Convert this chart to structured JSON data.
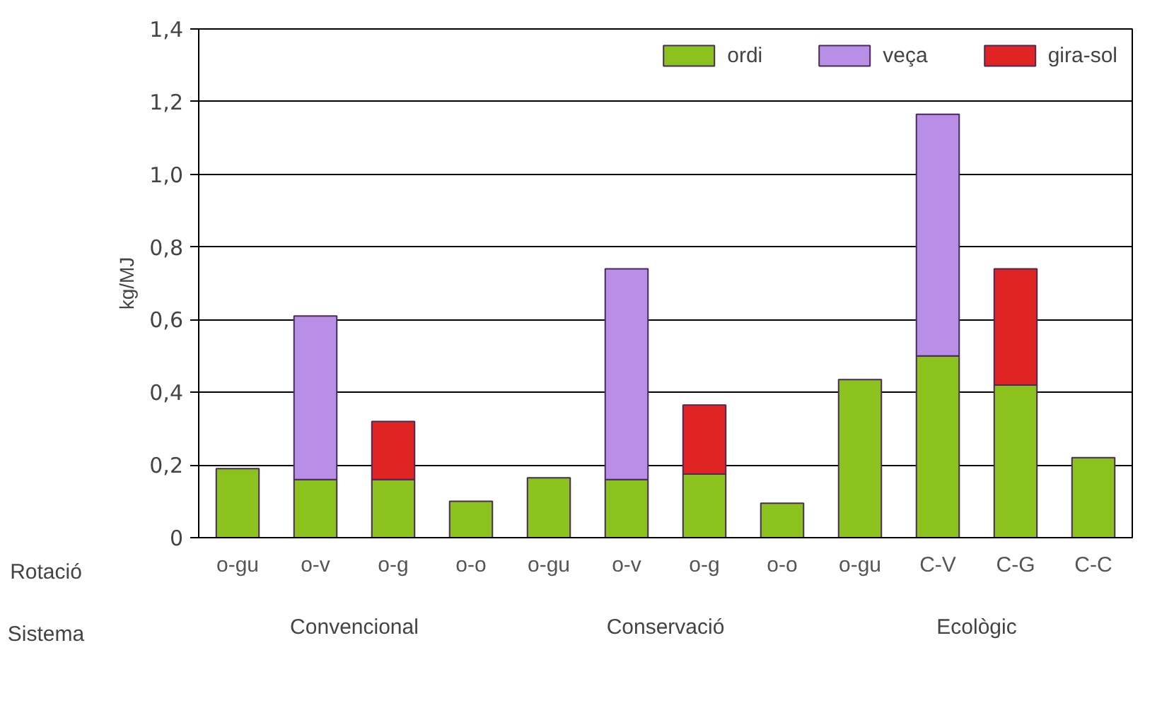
{
  "chart_data": {
    "type": "bar",
    "stacked": true,
    "ylabel": "kg/MJ",
    "categories": [
      "o-gu",
      "o-v",
      "o-g",
      "o-o",
      "o-gu",
      "o-v",
      "o-g",
      "o-o",
      "o-gu",
      "C-V",
      "C-G",
      "C-C"
    ],
    "series": [
      {
        "name": "ordi",
        "color": "#8cc21e",
        "values": [
          0.19,
          0.16,
          0.16,
          0.1,
          0.165,
          0.16,
          0.175,
          0.095,
          0.435,
          0.5,
          0.42,
          0.22
        ]
      },
      {
        "name": "veça",
        "color": "#b98ee6",
        "values": [
          0,
          0.45,
          0,
          0,
          0,
          0.58,
          0,
          0,
          0,
          0.665,
          0,
          0
        ]
      },
      {
        "name": "gira-sol",
        "color": "#e02424",
        "values": [
          0,
          0,
          0.16,
          0,
          0,
          0,
          0.19,
          0,
          0,
          0,
          0.32,
          0
        ]
      }
    ],
    "ylim": [
      0,
      1.4
    ],
    "yticks": [
      {
        "value": 0,
        "label": "0"
      },
      {
        "value": 0.2,
        "label": "0,2"
      },
      {
        "value": 0.4,
        "label": "0,4"
      },
      {
        "value": 0.6,
        "label": "0,6"
      },
      {
        "value": 0.8,
        "label": "0,8"
      },
      {
        "value": 1.0,
        "label": "1,0"
      },
      {
        "value": 1.2,
        "label": "1,2"
      },
      {
        "value": 1.4,
        "label": "1,4"
      }
    ],
    "grid": "y",
    "legend": "top right",
    "annotations": [
      "Rotació",
      "Sistema",
      "Convencional",
      "Conservació",
      "Ecològic"
    ]
  }
}
